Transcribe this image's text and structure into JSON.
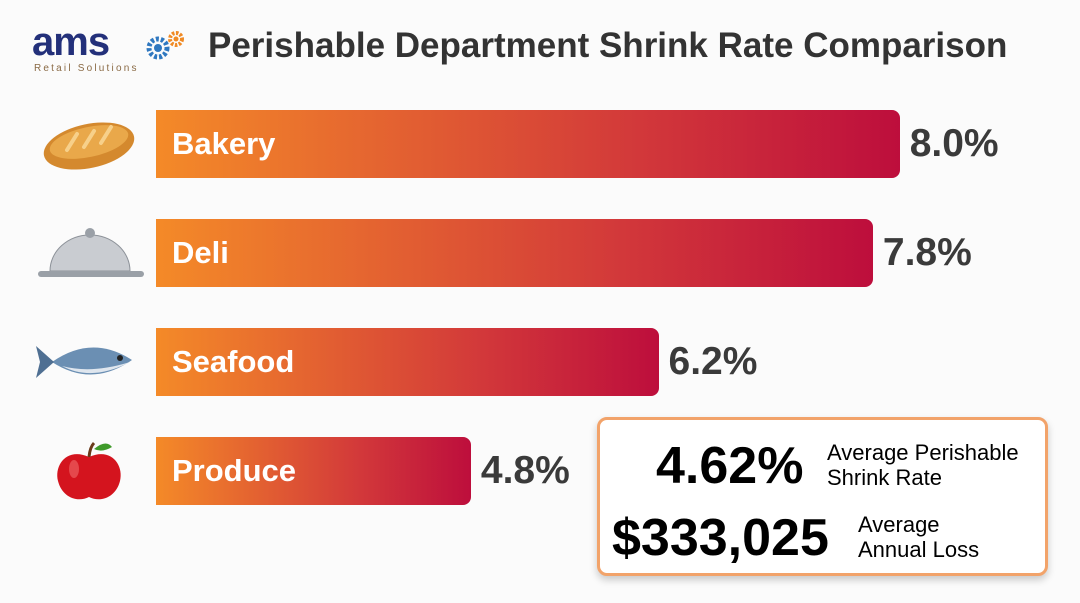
{
  "logo": {
    "text": "ams",
    "subtitle": "Retail Solutions"
  },
  "chart_data": {
    "type": "bar",
    "orientation": "horizontal",
    "title": "Perishable Department Shrink Rate Comparison",
    "categories": [
      "Bakery",
      "Deli",
      "Seafood",
      "Produce"
    ],
    "values": [
      8.0,
      7.8,
      6.2,
      4.8
    ],
    "value_labels": [
      "8.0%",
      "7.8%",
      "6.2%",
      "4.8%"
    ],
    "icons": [
      "bread-icon",
      "cloche-icon",
      "fish-icon",
      "apple-icon"
    ],
    "colors": {
      "gradient_start": "#f48a28",
      "gradient_end": "#bd0e3c"
    },
    "grid": false
  },
  "summary": {
    "avg_rate": "4.62%",
    "avg_rate_label_1": "Average Perishable",
    "avg_rate_label_2": "Shrink Rate",
    "avg_loss": "$333,025",
    "avg_loss_label_1": "Average",
    "avg_loss_label_2": "Annual Loss"
  }
}
